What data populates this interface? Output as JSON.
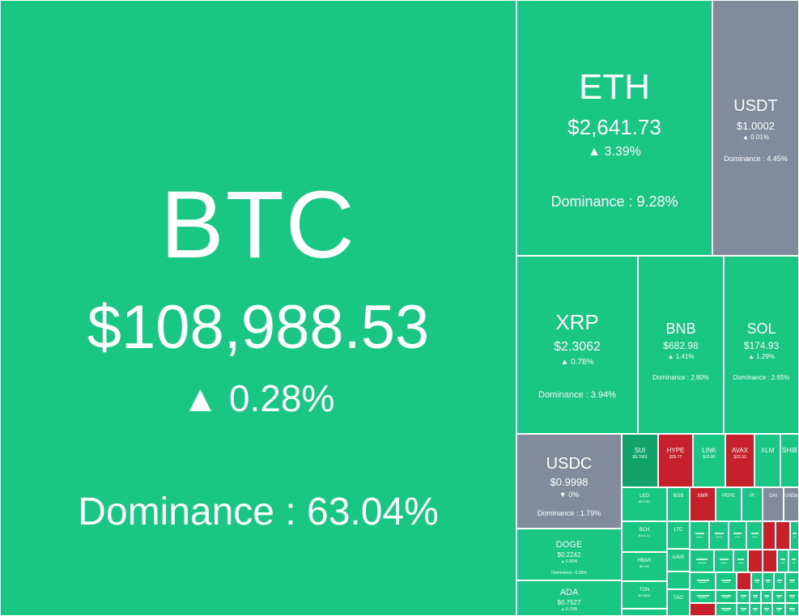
{
  "colors": {
    "gain": "#19c684",
    "gain_dark": "#12a36c",
    "loss": "#c8202a",
    "stable": "#818b9c"
  },
  "coins": {
    "btc": {
      "symbol": "BTC",
      "price": "$108,988.53",
      "change": "▲ 0.28%",
      "dominance": "Dominance : 63.04%"
    },
    "eth": {
      "symbol": "ETH",
      "price": "$2,641.73",
      "change": "▲ 3.39%",
      "dominance": "Dominance : 9.28%"
    },
    "usdt": {
      "symbol": "USDT",
      "price": "$1.0002",
      "change": "▲ 0.01%",
      "dominance": "Dominance : 4.45%"
    },
    "xrp": {
      "symbol": "XRP",
      "price": "$2.3062",
      "change": "▲ 0.78%",
      "dominance": "Dominance : 3.94%"
    },
    "bnb": {
      "symbol": "BNB",
      "price": "$682.98",
      "change": "▲ 1.41%",
      "dominance": "Dominance : 2.80%"
    },
    "sol": {
      "symbol": "SOL",
      "price": "$174.93",
      "change": "▲ 1.29%",
      "dominance": "Dominance : 2.65%"
    },
    "usdc": {
      "symbol": "USDC",
      "price": "$0.9998",
      "change": "▼ 0%",
      "dominance": "Dominance : 1.79%"
    },
    "doge": {
      "symbol": "DOGE",
      "price": "$0.2242",
      "change": "▲ 0.56%",
      "dominance": "Dominance : 0.95%"
    },
    "ada": {
      "symbol": "ADA",
      "price": "$0.7527",
      "change": "▲ 0.79%"
    },
    "sui": {
      "symbol": "SUI",
      "price": "$3.7063"
    },
    "hype": {
      "symbol": "HYPE",
      "price": "$35.77"
    },
    "link": {
      "symbol": "LINK",
      "price": "$15.85"
    },
    "avax": {
      "symbol": "AVAX",
      "price": "$23.33"
    },
    "xlm": {
      "symbol": "XLM"
    },
    "shib": {
      "symbol": "SHIB"
    },
    "leo": {
      "symbol": "LEO",
      "price": "$9.0781"
    },
    "bch": {
      "symbol": "BCH",
      "price": "$410.21"
    },
    "hbar": {
      "symbol": "HBAR",
      "price": "$0.190"
    },
    "ton": {
      "symbol": "TON",
      "price": "$2.8844"
    },
    "bgb": {
      "symbol": "BGB"
    },
    "xmr": {
      "symbol": "XMR"
    },
    "pepe": {
      "symbol": "PEPE"
    },
    "pi": {
      "symbol": "PI"
    },
    "dai": {
      "symbol": "DAI"
    },
    "usde": {
      "symbol": "USDe"
    },
    "ltc": {
      "symbol": "LTC"
    },
    "aave": {
      "symbol": "AAVE"
    },
    "dot": {
      "symbol": "DOT"
    },
    "tao": {
      "symbol": "TAO"
    },
    "uni": {
      "symbol": "UNI"
    },
    "etc": {
      "symbol": "ETC"
    },
    "trx": {
      "symbol": "TRX"
    },
    "okb": {
      "symbol": "OKB"
    },
    "cro": {
      "symbol": "CRO"
    },
    "apt": {
      "symbol": "APT"
    },
    "near": {
      "symbol": "NEAR"
    },
    "icp": {
      "symbol": "ICP"
    }
  }
}
